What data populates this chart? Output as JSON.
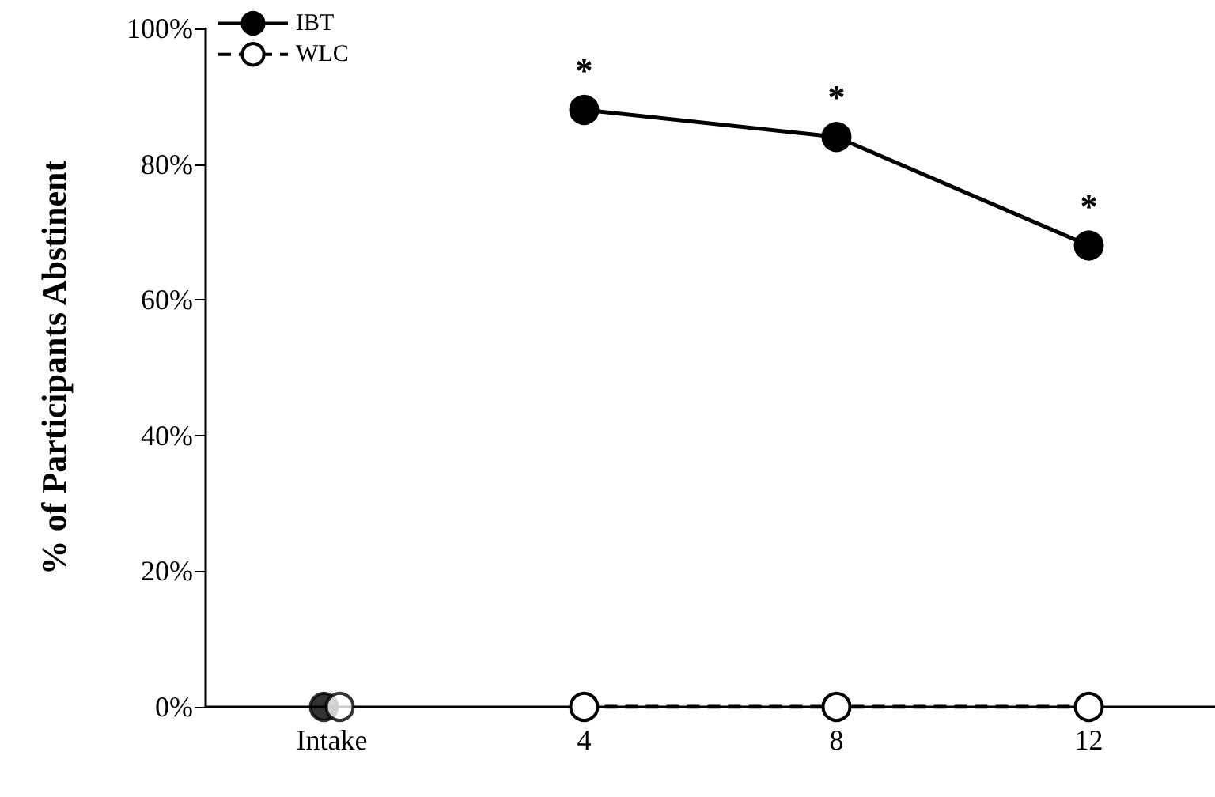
{
  "chart_data": {
    "type": "line",
    "ylabel": "% of Participants Abstinent",
    "categories": [
      "Intake",
      "4",
      "8",
      "12"
    ],
    "series": [
      {
        "name": "IBT",
        "color": "#000000",
        "values": [
          null,
          88,
          84,
          68
        ],
        "line_style": "solid"
      },
      {
        "name": "WLC",
        "color": "#ffffff",
        "values": [
          null,
          0,
          0,
          0
        ],
        "line_style": "dashed"
      },
      {
        "type": "scatter",
        "color": "#000000",
        "values": [
          0,
          null,
          null,
          null
        ]
      },
      {
        "type": "scatter",
        "color": "#ffffff",
        "values": [
          0,
          null,
          null,
          null
        ]
      }
    ],
    "ylim": [
      0,
      100
    ],
    "yticks": [
      {
        "value": 0,
        "label": "0%"
      },
      {
        "value": 20,
        "label": "20%"
      },
      {
        "value": 40,
        "label": "40%"
      },
      {
        "value": 60,
        "label": "60%"
      },
      {
        "value": 80,
        "label": "80%"
      },
      {
        "value": 100,
        "label": "100%"
      }
    ],
    "annotations": [
      {
        "text": "*",
        "x": "4",
        "y": 88
      },
      {
        "text": "*",
        "x": "8",
        "y": 84
      },
      {
        "text": "*",
        "x": "12",
        "y": 68
      }
    ],
    "grid": false,
    "legend": "top left",
    "marker": "circle"
  }
}
